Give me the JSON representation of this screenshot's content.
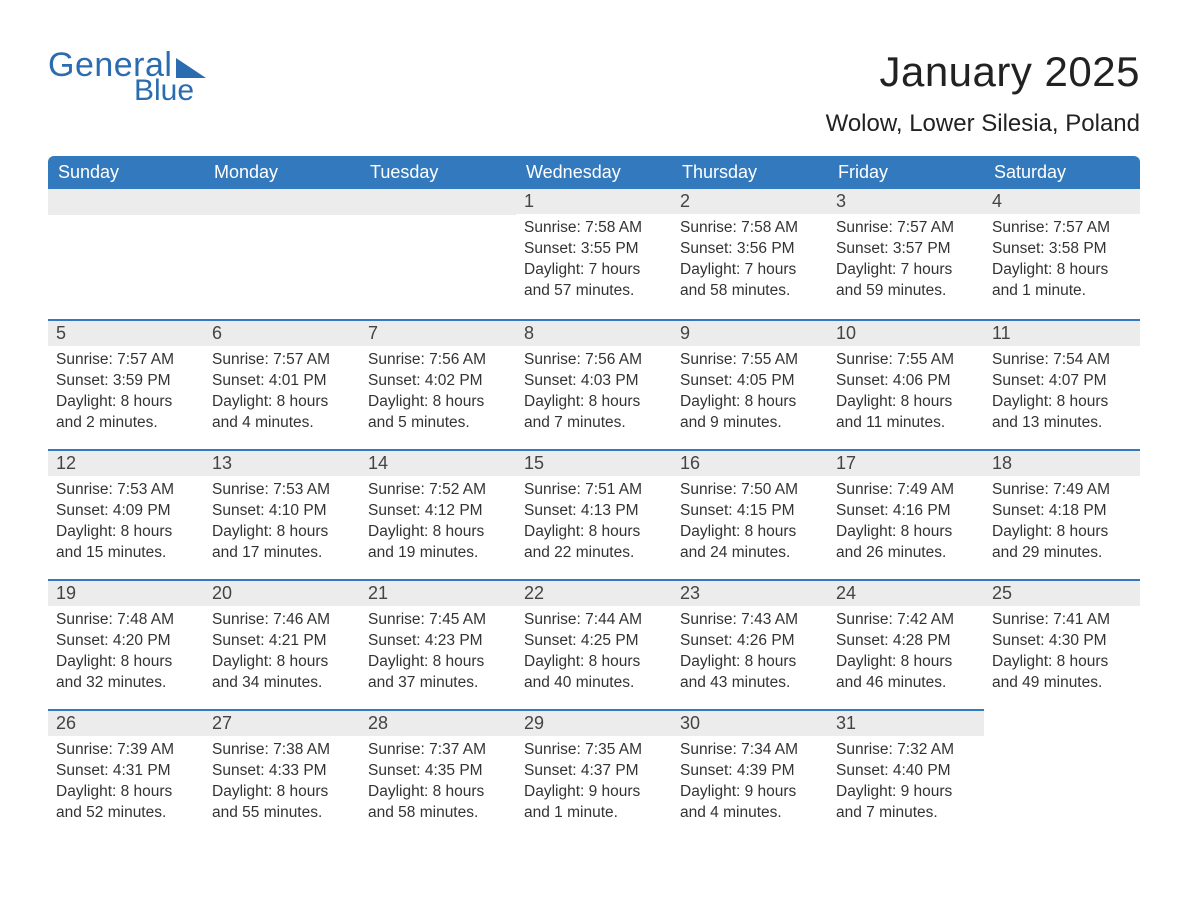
{
  "logo": {
    "word1": "General",
    "word2": "Blue",
    "accent_color": "#2b6cb0"
  },
  "header": {
    "title": "January 2025",
    "location": "Wolow, Lower Silesia, Poland"
  },
  "calendar": {
    "header_bg": "#3379bd",
    "header_fg": "#ffffff",
    "band_bg": "#ececec",
    "band_border": "#3379bd",
    "day_headers": [
      "Sunday",
      "Monday",
      "Tuesday",
      "Wednesday",
      "Thursday",
      "Friday",
      "Saturday"
    ],
    "weeks": [
      [
        null,
        null,
        null,
        {
          "n": "1",
          "sunrise": "Sunrise: 7:58 AM",
          "sunset": "Sunset: 3:55 PM",
          "day1": "Daylight: 7 hours",
          "day2": "and 57 minutes."
        },
        {
          "n": "2",
          "sunrise": "Sunrise: 7:58 AM",
          "sunset": "Sunset: 3:56 PM",
          "day1": "Daylight: 7 hours",
          "day2": "and 58 minutes."
        },
        {
          "n": "3",
          "sunrise": "Sunrise: 7:57 AM",
          "sunset": "Sunset: 3:57 PM",
          "day1": "Daylight: 7 hours",
          "day2": "and 59 minutes."
        },
        {
          "n": "4",
          "sunrise": "Sunrise: 7:57 AM",
          "sunset": "Sunset: 3:58 PM",
          "day1": "Daylight: 8 hours",
          "day2": "and 1 minute."
        }
      ],
      [
        {
          "n": "5",
          "sunrise": "Sunrise: 7:57 AM",
          "sunset": "Sunset: 3:59 PM",
          "day1": "Daylight: 8 hours",
          "day2": "and 2 minutes."
        },
        {
          "n": "6",
          "sunrise": "Sunrise: 7:57 AM",
          "sunset": "Sunset: 4:01 PM",
          "day1": "Daylight: 8 hours",
          "day2": "and 4 minutes."
        },
        {
          "n": "7",
          "sunrise": "Sunrise: 7:56 AM",
          "sunset": "Sunset: 4:02 PM",
          "day1": "Daylight: 8 hours",
          "day2": "and 5 minutes."
        },
        {
          "n": "8",
          "sunrise": "Sunrise: 7:56 AM",
          "sunset": "Sunset: 4:03 PM",
          "day1": "Daylight: 8 hours",
          "day2": "and 7 minutes."
        },
        {
          "n": "9",
          "sunrise": "Sunrise: 7:55 AM",
          "sunset": "Sunset: 4:05 PM",
          "day1": "Daylight: 8 hours",
          "day2": "and 9 minutes."
        },
        {
          "n": "10",
          "sunrise": "Sunrise: 7:55 AM",
          "sunset": "Sunset: 4:06 PM",
          "day1": "Daylight: 8 hours",
          "day2": "and 11 minutes."
        },
        {
          "n": "11",
          "sunrise": "Sunrise: 7:54 AM",
          "sunset": "Sunset: 4:07 PM",
          "day1": "Daylight: 8 hours",
          "day2": "and 13 minutes."
        }
      ],
      [
        {
          "n": "12",
          "sunrise": "Sunrise: 7:53 AM",
          "sunset": "Sunset: 4:09 PM",
          "day1": "Daylight: 8 hours",
          "day2": "and 15 minutes."
        },
        {
          "n": "13",
          "sunrise": "Sunrise: 7:53 AM",
          "sunset": "Sunset: 4:10 PM",
          "day1": "Daylight: 8 hours",
          "day2": "and 17 minutes."
        },
        {
          "n": "14",
          "sunrise": "Sunrise: 7:52 AM",
          "sunset": "Sunset: 4:12 PM",
          "day1": "Daylight: 8 hours",
          "day2": "and 19 minutes."
        },
        {
          "n": "15",
          "sunrise": "Sunrise: 7:51 AM",
          "sunset": "Sunset: 4:13 PM",
          "day1": "Daylight: 8 hours",
          "day2": "and 22 minutes."
        },
        {
          "n": "16",
          "sunrise": "Sunrise: 7:50 AM",
          "sunset": "Sunset: 4:15 PM",
          "day1": "Daylight: 8 hours",
          "day2": "and 24 minutes."
        },
        {
          "n": "17",
          "sunrise": "Sunrise: 7:49 AM",
          "sunset": "Sunset: 4:16 PM",
          "day1": "Daylight: 8 hours",
          "day2": "and 26 minutes."
        },
        {
          "n": "18",
          "sunrise": "Sunrise: 7:49 AM",
          "sunset": "Sunset: 4:18 PM",
          "day1": "Daylight: 8 hours",
          "day2": "and 29 minutes."
        }
      ],
      [
        {
          "n": "19",
          "sunrise": "Sunrise: 7:48 AM",
          "sunset": "Sunset: 4:20 PM",
          "day1": "Daylight: 8 hours",
          "day2": "and 32 minutes."
        },
        {
          "n": "20",
          "sunrise": "Sunrise: 7:46 AM",
          "sunset": "Sunset: 4:21 PM",
          "day1": "Daylight: 8 hours",
          "day2": "and 34 minutes."
        },
        {
          "n": "21",
          "sunrise": "Sunrise: 7:45 AM",
          "sunset": "Sunset: 4:23 PM",
          "day1": "Daylight: 8 hours",
          "day2": "and 37 minutes."
        },
        {
          "n": "22",
          "sunrise": "Sunrise: 7:44 AM",
          "sunset": "Sunset: 4:25 PM",
          "day1": "Daylight: 8 hours",
          "day2": "and 40 minutes."
        },
        {
          "n": "23",
          "sunrise": "Sunrise: 7:43 AM",
          "sunset": "Sunset: 4:26 PM",
          "day1": "Daylight: 8 hours",
          "day2": "and 43 minutes."
        },
        {
          "n": "24",
          "sunrise": "Sunrise: 7:42 AM",
          "sunset": "Sunset: 4:28 PM",
          "day1": "Daylight: 8 hours",
          "day2": "and 46 minutes."
        },
        {
          "n": "25",
          "sunrise": "Sunrise: 7:41 AM",
          "sunset": "Sunset: 4:30 PM",
          "day1": "Daylight: 8 hours",
          "day2": "and 49 minutes."
        }
      ],
      [
        {
          "n": "26",
          "sunrise": "Sunrise: 7:39 AM",
          "sunset": "Sunset: 4:31 PM",
          "day1": "Daylight: 8 hours",
          "day2": "and 52 minutes."
        },
        {
          "n": "27",
          "sunrise": "Sunrise: 7:38 AM",
          "sunset": "Sunset: 4:33 PM",
          "day1": "Daylight: 8 hours",
          "day2": "and 55 minutes."
        },
        {
          "n": "28",
          "sunrise": "Sunrise: 7:37 AM",
          "sunset": "Sunset: 4:35 PM",
          "day1": "Daylight: 8 hours",
          "day2": "and 58 minutes."
        },
        {
          "n": "29",
          "sunrise": "Sunrise: 7:35 AM",
          "sunset": "Sunset: 4:37 PM",
          "day1": "Daylight: 9 hours",
          "day2": "and 1 minute."
        },
        {
          "n": "30",
          "sunrise": "Sunrise: 7:34 AM",
          "sunset": "Sunset: 4:39 PM",
          "day1": "Daylight: 9 hours",
          "day2": "and 4 minutes."
        },
        {
          "n": "31",
          "sunrise": "Sunrise: 7:32 AM",
          "sunset": "Sunset: 4:40 PM",
          "day1": "Daylight: 9 hours",
          "day2": "and 7 minutes."
        },
        null
      ]
    ]
  }
}
